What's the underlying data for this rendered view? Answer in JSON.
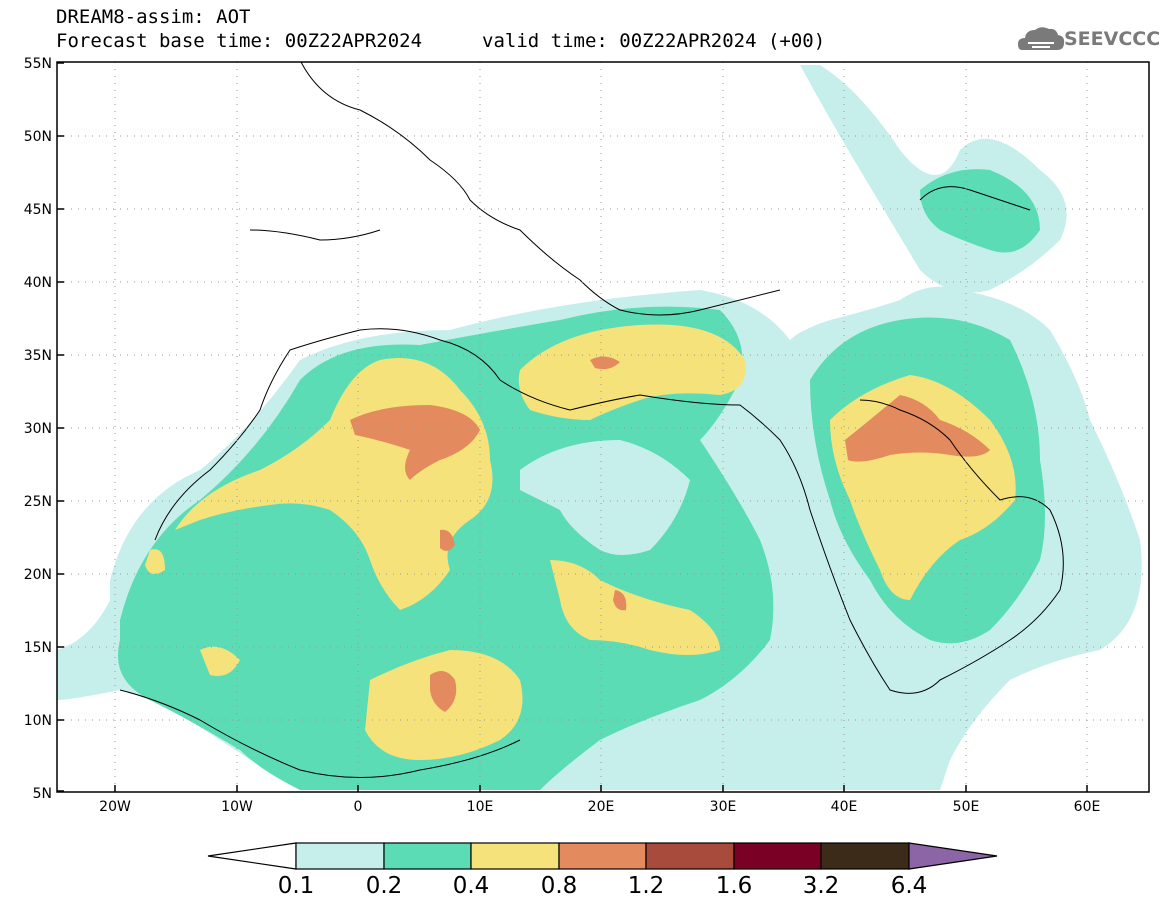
{
  "title": {
    "model": "DREAM8-assim: AOT",
    "base_time": "Forecast base time: 00Z22APR2024",
    "valid_time": "valid time: 00Z22APR2024 (+00)"
  },
  "logo": {
    "text": "SEEVCCC",
    "icon": "cloud-logo-icon"
  },
  "map": {
    "lat_labels": [
      "55N",
      "50N",
      "45N",
      "40N",
      "35N",
      "30N",
      "25N",
      "20N",
      "15N",
      "10N",
      "5N"
    ],
    "lon_labels": [
      "20W",
      "10W",
      "0",
      "10E",
      "20E",
      "30E",
      "40E",
      "50E",
      "60E"
    ],
    "lat_range": [
      5,
      55
    ],
    "lon_range": [
      -25,
      65
    ],
    "grid": "dotted"
  },
  "colorbar": {
    "levels": [
      "0.1",
      "0.2",
      "0.4",
      "0.8",
      "1.2",
      "1.6",
      "3.2",
      "6.4"
    ],
    "colors": [
      "#c6efec",
      "#5bdcb5",
      "#f5e27a",
      "#e38a5e",
      "#a84a3c",
      "#7a0026",
      "#3d2b1a",
      "#8c65a6"
    ],
    "under_color": "#ffffff",
    "over_color": "#8c65a6"
  },
  "colors": {
    "bin1": "#c6efec",
    "bin2": "#5bdcb5",
    "bin3": "#f5e27a",
    "bin4": "#e38a5e"
  }
}
